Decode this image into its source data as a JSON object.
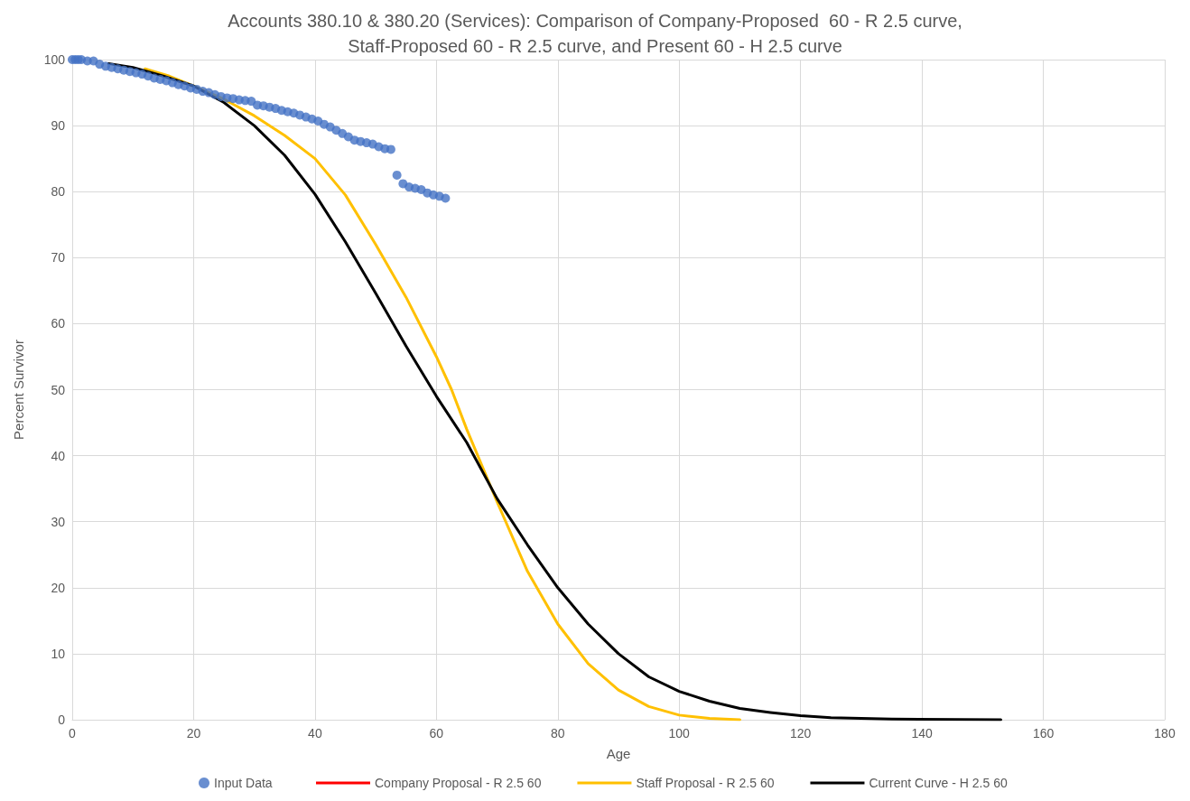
{
  "chart_data": {
    "type": "line",
    "title": "Accounts 380.10 & 380.20 (Services): Comparison of Company-Proposed  60 - R 2.5 curve,\nStaff-Proposed 60 - R 2.5 curve, and Present 60 - H 2.5 curve",
    "xlabel": "Age",
    "ylabel": "Percent Survivor",
    "xlim": [
      0,
      180
    ],
    "xticks": [
      0,
      20,
      40,
      60,
      80,
      100,
      120,
      140,
      160,
      180
    ],
    "ylim": [
      0,
      100
    ],
    "yticks": [
      0,
      10,
      20,
      30,
      40,
      50,
      60,
      70,
      80,
      90,
      100
    ],
    "grid": true,
    "legend": "bottom",
    "line_style": "solid",
    "series": [
      {
        "name": "Input Data",
        "type": "scatter",
        "marker": "circle",
        "color": "#4472c4",
        "x": [
          0,
          0.5,
          1,
          1.5,
          2.5,
          3.5,
          4.5,
          5.5,
          6.5,
          7.5,
          8.5,
          9.5,
          10.5,
          11.5,
          12.5,
          13.5,
          14.5,
          15.5,
          16.5,
          17.5,
          18.5,
          19.5,
          20.5,
          21.5,
          22.5,
          23.5,
          24.5,
          25.5,
          26.5,
          27.5,
          28.5,
          29.5,
          30.5,
          31.5,
          32.5,
          33.5,
          34.5,
          35.5,
          36.5,
          37.5,
          38.5,
          39.5,
          40.5,
          41.5,
          42.5,
          43.5,
          44.5,
          45.5,
          46.5,
          47.5,
          48.5,
          49.5,
          50.5,
          51.5,
          52.5,
          53.5,
          54.5,
          55.5,
          56.5,
          57.5,
          58.5,
          59.5,
          60.5,
          61.5
        ],
        "values": [
          100,
          100,
          100,
          100,
          99.8,
          99.8,
          99.3,
          99.0,
          98.8,
          98.6,
          98.4,
          98.2,
          98.0,
          97.8,
          97.5,
          97.2,
          97.0,
          96.8,
          96.5,
          96.2,
          96.0,
          95.7,
          95.5,
          95.2,
          95.0,
          94.7,
          94.4,
          94.2,
          94.1,
          93.9,
          93.8,
          93.7,
          93.1,
          93.0,
          92.8,
          92.6,
          92.3,
          92.1,
          91.9,
          91.6,
          91.3,
          91.0,
          90.7,
          90.2,
          89.8,
          89.3,
          88.8,
          88.3,
          87.8,
          87.6,
          87.4,
          87.2,
          86.8,
          86.5,
          86.4,
          82.5,
          81.2,
          80.7,
          80.5,
          80.3,
          79.8,
          79.5,
          79.3,
          79.0
        ]
      },
      {
        "name": "Company Proposal - R 2.5 60",
        "color": "#ff0000"
      },
      {
        "name": "Staff Proposal - R 2.5 60",
        "color": "#ffc000",
        "x": [
          12,
          16,
          20,
          25,
          30,
          35,
          40,
          45,
          50,
          55,
          60,
          62.5,
          65,
          70,
          75,
          80,
          85,
          90,
          95,
          100,
          105,
          110
        ],
        "values": [
          98.6,
          97.5,
          96.0,
          94.0,
          91.5,
          88.5,
          85,
          79.5,
          72,
          64,
          55,
          50,
          44,
          33,
          22.5,
          14.5,
          8.5,
          4.5,
          2,
          0.7,
          0.2,
          0
        ]
      },
      {
        "name": "Current Curve - H 2.5 60",
        "color": "#000000",
        "x": [
          6,
          10,
          15,
          20,
          25,
          30,
          35,
          40,
          45,
          50,
          55,
          60,
          65,
          70,
          75,
          80,
          85,
          90,
          95,
          100,
          105,
          110,
          115,
          120,
          125,
          130,
          135,
          153
        ],
        "values": [
          99.4,
          98.8,
          97.5,
          96,
          93.5,
          90,
          85.5,
          79.6,
          72.4,
          64.6,
          56.6,
          49,
          42,
          33.5,
          26.5,
          20,
          14.5,
          10,
          6.5,
          4.3,
          2.8,
          1.7,
          1.1,
          0.6,
          0.3,
          0.2,
          0.1,
          0
        ]
      }
    ]
  }
}
